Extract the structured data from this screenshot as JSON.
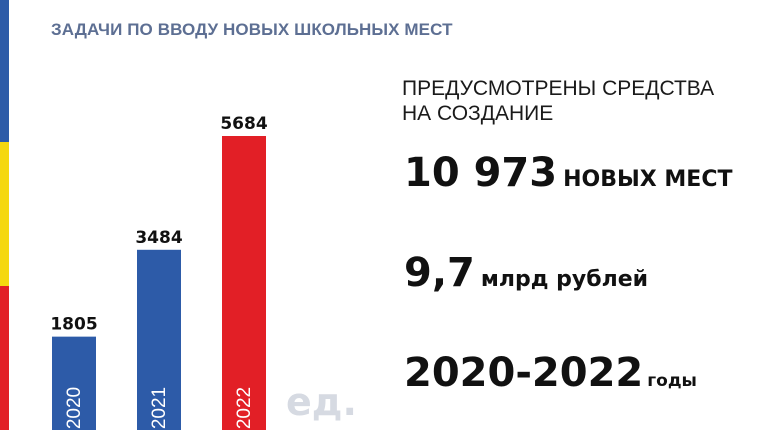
{
  "title": "ЗАДАЧИ ПО ВВОДУ НОВЫХ ШКОЛЬНЫХ МЕСТ",
  "chart_data": {
    "type": "bar",
    "categories": [
      "2020",
      "2021",
      "2022"
    ],
    "values": [
      1805,
      3484,
      5684
    ],
    "colors": [
      "#2d5ba8",
      "#2d5ba8",
      "#e21f26"
    ],
    "unit_label": "ед.",
    "title": "",
    "xlabel": "",
    "ylabel": ""
  },
  "info": {
    "heading_line1": "ПРЕДУСМОТРЕНЫ СРЕДСТВА",
    "heading_line2": "НА СОЗДАНИЕ",
    "places_value": "10 973",
    "places_label": "НОВЫХ МЕСТ",
    "funds_value": "9,7",
    "funds_label": "млрд рублей",
    "period_value": "2020-2022",
    "period_label": "годы"
  },
  "colors": {
    "accent_blue": "#2d5ba8",
    "accent_yellow": "#f5d80f",
    "accent_red": "#e21f26",
    "title_color": "#5d6f93"
  }
}
